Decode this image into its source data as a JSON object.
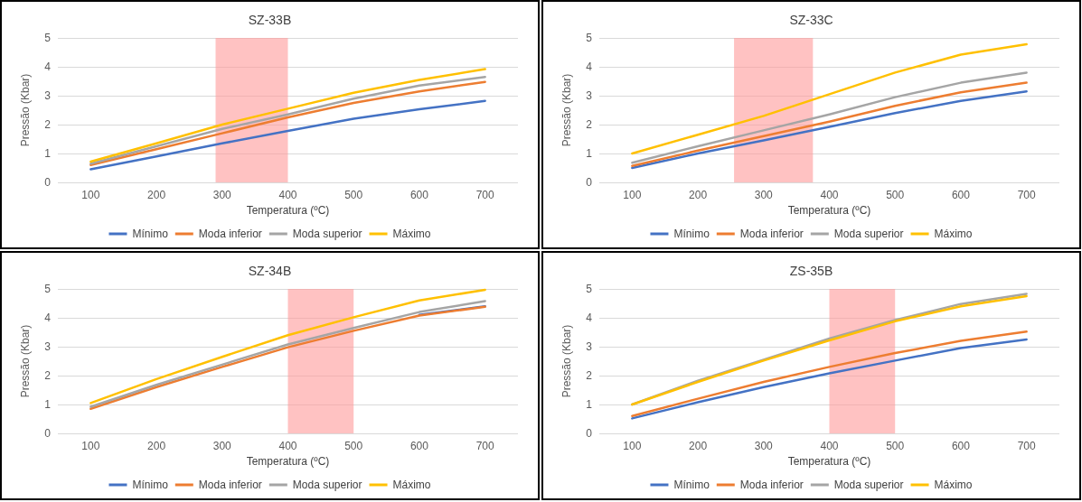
{
  "chart_data": [
    {
      "type": "line",
      "title": "SZ-33B",
      "xlabel": "Temperatura (ºC)",
      "ylabel": "Pressão (Kbar)",
      "x": [
        100,
        200,
        300,
        400,
        500,
        600,
        700
      ],
      "xlim": [
        50,
        750
      ],
      "xticks": [
        100,
        200,
        300,
        400,
        500,
        600,
        700
      ],
      "ylim": [
        0,
        5
      ],
      "yticks": [
        0,
        1,
        2,
        3,
        4,
        5
      ],
      "grid": "y",
      "legend": "bottom",
      "marker": "none",
      "bands": [
        {
          "axis": "x",
          "from": 290,
          "to": 400,
          "color": "#ff9999"
        }
      ],
      "series": [
        {
          "name": "Mínimo",
          "color": "#4472c4",
          "values": [
            0.45,
            0.9,
            1.35,
            1.78,
            2.2,
            2.53,
            2.82
          ]
        },
        {
          "name": "Moda inferior",
          "color": "#ed7d31",
          "values": [
            0.6,
            1.15,
            1.7,
            2.25,
            2.75,
            3.15,
            3.48
          ]
        },
        {
          "name": "Moda superior",
          "color": "#a5a5a5",
          "values": [
            0.65,
            1.25,
            1.85,
            2.35,
            2.9,
            3.35,
            3.65
          ]
        },
        {
          "name": "Máximo",
          "color": "#ffc000",
          "values": [
            0.72,
            1.35,
            2.0,
            2.55,
            3.1,
            3.55,
            3.92
          ]
        }
      ]
    },
    {
      "type": "line",
      "title": "SZ-33C",
      "xlabel": "Temperatura (ºC)",
      "ylabel": "Pressão (Kbar)",
      "x": [
        100,
        200,
        300,
        400,
        500,
        600,
        700
      ],
      "xlim": [
        50,
        750
      ],
      "xticks": [
        100,
        200,
        300,
        400,
        500,
        600,
        700
      ],
      "ylim": [
        0,
        5
      ],
      "yticks": [
        0,
        1,
        2,
        3,
        4,
        5
      ],
      "grid": "y",
      "legend": "bottom",
      "marker": "none",
      "bands": [
        {
          "axis": "x",
          "from": 255,
          "to": 375,
          "color": "#ff9999"
        }
      ],
      "series": [
        {
          "name": "Mínimo",
          "color": "#4472c4",
          "values": [
            0.5,
            1.0,
            1.45,
            1.92,
            2.4,
            2.82,
            3.15
          ]
        },
        {
          "name": "Moda inferior",
          "color": "#ed7d31",
          "values": [
            0.57,
            1.1,
            1.6,
            2.1,
            2.65,
            3.12,
            3.45
          ]
        },
        {
          "name": "Moda superior",
          "color": "#a5a5a5",
          "values": [
            0.68,
            1.25,
            1.8,
            2.35,
            2.95,
            3.45,
            3.8
          ]
        },
        {
          "name": "Máximo",
          "color": "#ffc000",
          "values": [
            1.0,
            1.65,
            2.3,
            3.05,
            3.8,
            4.42,
            4.78
          ]
        }
      ]
    },
    {
      "type": "line",
      "title": "SZ-34B",
      "xlabel": "Temperatura (ºC)",
      "ylabel": "Pressão (Kbar)",
      "x": [
        100,
        200,
        300,
        400,
        500,
        600,
        700
      ],
      "xlim": [
        50,
        750
      ],
      "xticks": [
        100,
        200,
        300,
        400,
        500,
        600,
        700
      ],
      "ylim": [
        0,
        5
      ],
      "yticks": [
        0,
        1,
        2,
        3,
        4,
        5
      ],
      "grid": "y",
      "legend": "bottom",
      "marker": "none",
      "bands": [
        {
          "axis": "x",
          "from": 400,
          "to": 500,
          "color": "#ff9999"
        }
      ],
      "series": [
        {
          "name": "Mínimo",
          "color": "#4472c4",
          "values": [
            null,
            null,
            null,
            null,
            null,
            4.1,
            4.4
          ]
        },
        {
          "name": "Moda inferior",
          "color": "#ed7d31",
          "values": [
            0.85,
            1.6,
            2.3,
            2.98,
            3.55,
            4.08,
            4.38
          ]
        },
        {
          "name": "Moda superior",
          "color": "#a5a5a5",
          "values": [
            0.92,
            1.68,
            2.38,
            3.08,
            3.65,
            4.2,
            4.58
          ]
        },
        {
          "name": "Máximo",
          "color": "#ffc000",
          "values": [
            1.05,
            1.88,
            2.65,
            3.4,
            4.02,
            4.6,
            4.97
          ]
        }
      ]
    },
    {
      "type": "line",
      "title": "ZS-35B",
      "xlabel": "Temperatura (ºC)",
      "ylabel": "Pressão (Kbar)",
      "x": [
        100,
        200,
        300,
        400,
        500,
        600,
        700
      ],
      "xlim": [
        50,
        750
      ],
      "xticks": [
        100,
        200,
        300,
        400,
        500,
        600,
        700
      ],
      "ylim": [
        0,
        5
      ],
      "yticks": [
        0,
        1,
        2,
        3,
        4,
        5
      ],
      "grid": "y",
      "legend": "bottom",
      "marker": "none",
      "bands": [
        {
          "axis": "x",
          "from": 400,
          "to": 500,
          "color": "#ff9999"
        }
      ],
      "series": [
        {
          "name": "Mínimo",
          "color": "#4472c4",
          "values": [
            0.52,
            1.08,
            1.6,
            2.08,
            2.52,
            2.95,
            3.25
          ]
        },
        {
          "name": "Moda inferior",
          "color": "#ed7d31",
          "values": [
            0.6,
            1.2,
            1.78,
            2.3,
            2.78,
            3.2,
            3.52
          ]
        },
        {
          "name": "Moda superior",
          "color": "#a5a5a5",
          "values": [
            1.0,
            1.82,
            2.55,
            3.28,
            3.92,
            4.48,
            4.83
          ]
        },
        {
          "name": "Máximo",
          "color": "#ffc000",
          "values": [
            1.0,
            1.78,
            2.52,
            3.22,
            3.88,
            4.4,
            4.75
          ]
        }
      ]
    }
  ]
}
